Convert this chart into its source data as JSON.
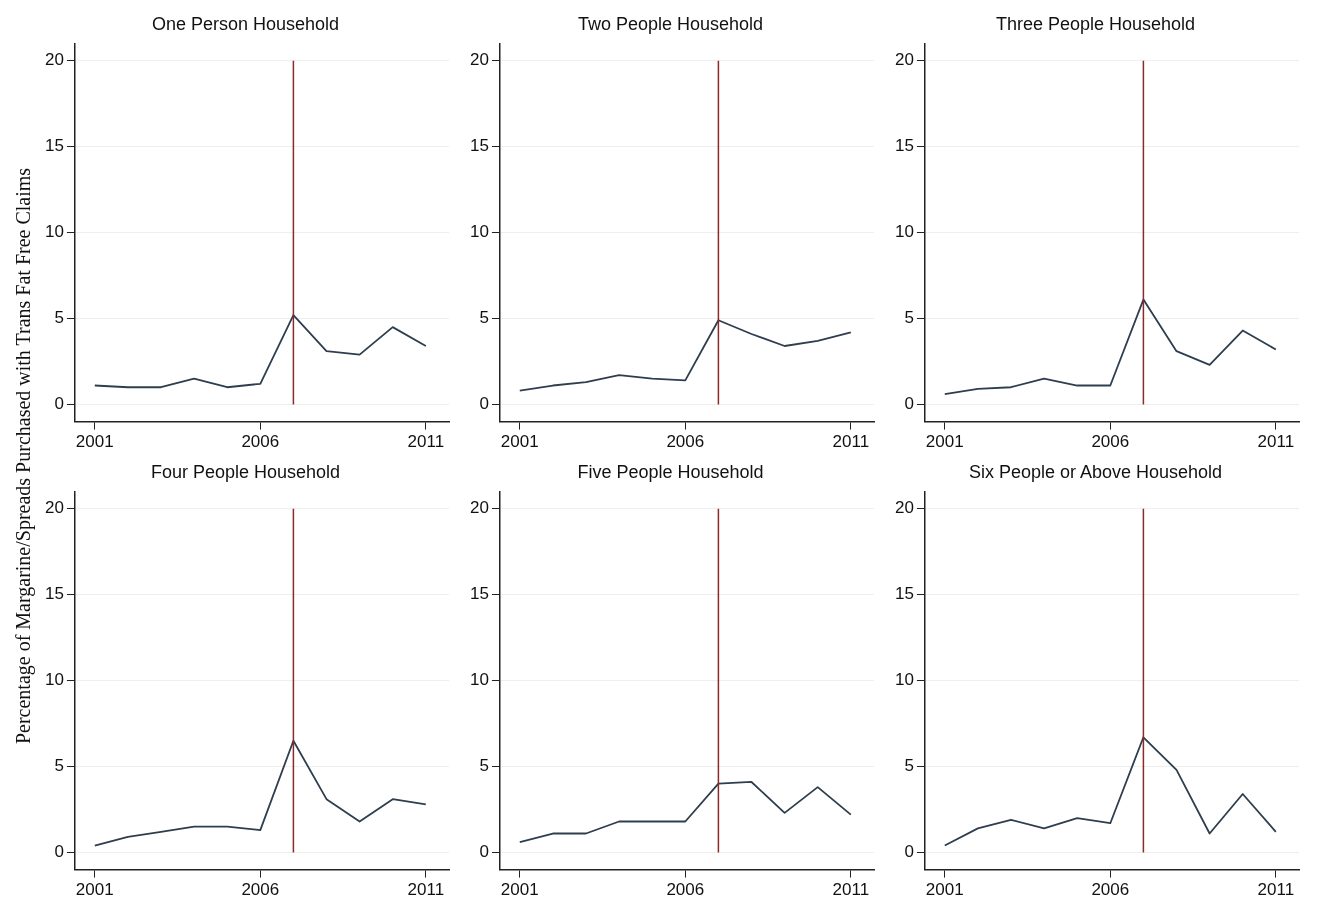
{
  "chart_data": [
    {
      "type": "line",
      "title": "One Person Household",
      "ylabel": "Percentage of Margarine/Spreads Purchased with Trans Fat Free Claims",
      "x": [
        2001,
        2002,
        2003,
        2004,
        2005,
        2006,
        2007,
        2008,
        2009,
        2010,
        2011
      ],
      "series": [
        {
          "color": "#2e3e4e",
          "values": [
            1.1,
            1.0,
            1.0,
            1.5,
            1.0,
            1.2,
            5.2,
            3.1,
            2.9,
            4.5,
            3.4
          ]
        }
      ],
      "xlim": [
        2000.4,
        2011.7
      ],
      "ylim": [
        -1,
        21
      ],
      "xticks": [
        2001,
        2006,
        2011
      ],
      "yticks": [
        0,
        5,
        10,
        15,
        20
      ],
      "grid": "y",
      "ref_lines": [
        {
          "axis": "x",
          "value": 2007,
          "color": "#8b2a2a"
        }
      ],
      "marker": "none",
      "line_style": "solid"
    },
    {
      "type": "line",
      "title": "Two People Household",
      "x": [
        2001,
        2002,
        2003,
        2004,
        2005,
        2006,
        2007,
        2008,
        2009,
        2010,
        2011
      ],
      "series": [
        {
          "color": "#2e3e4e",
          "values": [
            0.8,
            1.1,
            1.3,
            1.7,
            1.5,
            1.4,
            4.9,
            4.1,
            3.4,
            3.7,
            4.2
          ]
        }
      ],
      "xlim": [
        2000.4,
        2011.7
      ],
      "ylim": [
        -1,
        21
      ],
      "xticks": [
        2001,
        2006,
        2011
      ],
      "yticks": [
        0,
        5,
        10,
        15,
        20
      ],
      "grid": "y",
      "ref_lines": [
        {
          "axis": "x",
          "value": 2007,
          "color": "#8b2a2a"
        }
      ],
      "marker": "none",
      "line_style": "solid"
    },
    {
      "type": "line",
      "title": "Three People Household",
      "x": [
        2001,
        2002,
        2003,
        2004,
        2005,
        2006,
        2007,
        2008,
        2009,
        2010,
        2011
      ],
      "series": [
        {
          "color": "#2e3e4e",
          "values": [
            0.6,
            0.9,
            1.0,
            1.5,
            1.1,
            1.1,
            6.1,
            3.1,
            2.3,
            4.3,
            3.2
          ]
        }
      ],
      "xlim": [
        2000.4,
        2011.7
      ],
      "ylim": [
        -1,
        21
      ],
      "xticks": [
        2001,
        2006,
        2011
      ],
      "yticks": [
        0,
        5,
        10,
        15,
        20
      ],
      "grid": "y",
      "ref_lines": [
        {
          "axis": "x",
          "value": 2007,
          "color": "#8b2a2a"
        }
      ],
      "marker": "none",
      "line_style": "solid"
    },
    {
      "type": "line",
      "title": "Four People Household",
      "x": [
        2001,
        2002,
        2003,
        2004,
        2005,
        2006,
        2007,
        2008,
        2009,
        2010,
        2011
      ],
      "series": [
        {
          "color": "#2e3e4e",
          "values": [
            0.4,
            0.9,
            1.2,
            1.5,
            1.5,
            1.3,
            6.5,
            3.1,
            1.8,
            3.1,
            2.8
          ]
        }
      ],
      "xlim": [
        2000.4,
        2011.7
      ],
      "ylim": [
        -1,
        21
      ],
      "xticks": [
        2001,
        2006,
        2011
      ],
      "yticks": [
        0,
        5,
        10,
        15,
        20
      ],
      "grid": "y",
      "ref_lines": [
        {
          "axis": "x",
          "value": 2007,
          "color": "#8b2a2a"
        }
      ],
      "marker": "none",
      "line_style": "solid"
    },
    {
      "type": "line",
      "title": "Five People Household",
      "x": [
        2001,
        2002,
        2003,
        2004,
        2005,
        2006,
        2007,
        2008,
        2009,
        2010,
        2011
      ],
      "series": [
        {
          "color": "#2e3e4e",
          "values": [
            0.6,
            1.1,
            1.1,
            1.8,
            1.8,
            1.8,
            4.0,
            4.1,
            2.3,
            3.8,
            2.2
          ]
        }
      ],
      "xlim": [
        2000.4,
        2011.7
      ],
      "ylim": [
        -1,
        21
      ],
      "xticks": [
        2001,
        2006,
        2011
      ],
      "yticks": [
        0,
        5,
        10,
        15,
        20
      ],
      "grid": "y",
      "ref_lines": [
        {
          "axis": "x",
          "value": 2007,
          "color": "#8b2a2a"
        }
      ],
      "marker": "none",
      "line_style": "solid"
    },
    {
      "type": "line",
      "title": "Six People or Above Household",
      "x": [
        2001,
        2002,
        2003,
        2004,
        2005,
        2006,
        2007,
        2008,
        2009,
        2010,
        2011
      ],
      "series": [
        {
          "color": "#2e3e4e",
          "values": [
            0.4,
            1.4,
            1.9,
            1.4,
            2.0,
            1.7,
            6.7,
            4.8,
            1.1,
            3.4,
            1.2
          ]
        }
      ],
      "xlim": [
        2000.4,
        2011.7
      ],
      "ylim": [
        -1,
        21
      ],
      "xticks": [
        2001,
        2006,
        2011
      ],
      "yticks": [
        0,
        5,
        10,
        15,
        20
      ],
      "grid": "y",
      "ref_lines": [
        {
          "axis": "x",
          "value": 2007,
          "color": "#8b2a2a"
        }
      ],
      "marker": "none",
      "line_style": "solid"
    }
  ]
}
